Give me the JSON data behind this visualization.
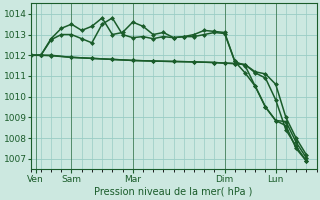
{
  "bg_color": "#cce8e0",
  "grid_color": "#99ccc4",
  "line_color": "#1a5c2a",
  "markersize": 2.5,
  "linewidth": 1.1,
  "xlabel": "Pression niveau de la mer( hPa )",
  "ylim": [
    1006.5,
    1014.5
  ],
  "yticks": [
    1007,
    1008,
    1009,
    1010,
    1011,
    1012,
    1013,
    1014
  ],
  "xlim": [
    0,
    28
  ],
  "xtick_positions": [
    0.5,
    4,
    10,
    19,
    24
  ],
  "xtick_labels": [
    "Ven",
    "Sam",
    "Mar",
    "Dim",
    "Lun"
  ],
  "vlines": [
    0.5,
    4,
    10,
    19,
    24
  ],
  "series": [
    {
      "x": [
        0,
        1,
        2,
        3,
        4,
        5,
        6,
        7,
        8,
        9,
        10,
        11,
        12,
        13,
        14,
        15,
        16,
        17,
        18,
        19,
        20,
        21,
        22,
        23,
        24,
        25,
        26,
        27
      ],
      "y": [
        1012.0,
        1012.0,
        1012.8,
        1013.3,
        1013.5,
        1013.2,
        1013.4,
        1013.8,
        1013.0,
        1013.1,
        1013.6,
        1013.4,
        1013.0,
        1013.1,
        1012.85,
        1012.9,
        1013.0,
        1013.2,
        1013.15,
        1013.1,
        1011.7,
        1011.15,
        1010.5,
        1009.5,
        1008.85,
        1008.8,
        1007.8,
        1007.05
      ]
    },
    {
      "x": [
        0,
        1,
        2,
        3,
        4,
        5,
        6,
        7,
        8,
        9,
        10,
        11,
        12,
        13,
        14,
        15,
        16,
        17,
        18,
        19,
        20,
        21,
        22,
        23,
        24,
        25,
        26,
        27
      ],
      "y": [
        1012.0,
        1012.0,
        1012.75,
        1013.0,
        1013.0,
        1012.8,
        1012.6,
        1013.5,
        1013.8,
        1013.0,
        1012.85,
        1012.9,
        1012.8,
        1012.9,
        1012.85,
        1012.9,
        1012.9,
        1013.0,
        1013.1,
        1013.05,
        1011.7,
        1011.5,
        1010.5,
        1009.5,
        1008.85,
        1008.6,
        1007.5,
        1006.9
      ]
    },
    {
      "x": [
        0,
        1,
        2,
        4,
        6,
        8,
        10,
        12,
        14,
        16,
        18,
        19,
        20,
        21,
        22,
        23,
        24,
        25,
        26,
        27
      ],
      "y": [
        1012.0,
        1012.0,
        1012.0,
        1011.9,
        1011.85,
        1011.8,
        1011.75,
        1011.72,
        1011.7,
        1011.68,
        1011.65,
        1011.62,
        1011.6,
        1011.55,
        1011.2,
        1011.1,
        1010.6,
        1009.0,
        1008.0,
        1007.2
      ]
    },
    {
      "x": [
        0,
        1,
        2,
        4,
        6,
        8,
        10,
        12,
        14,
        16,
        18,
        19,
        20,
        21,
        22,
        23,
        24,
        25,
        26,
        27
      ],
      "y": [
        1012.0,
        1012.0,
        1011.98,
        1011.9,
        1011.85,
        1011.8,
        1011.75,
        1011.72,
        1011.7,
        1011.68,
        1011.65,
        1011.62,
        1011.6,
        1011.55,
        1011.15,
        1010.9,
        1009.85,
        1008.4,
        1007.6,
        1006.9
      ]
    }
  ]
}
